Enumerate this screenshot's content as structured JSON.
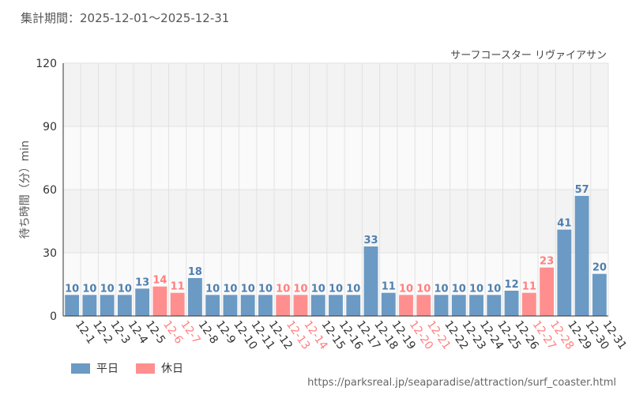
{
  "header": {
    "period_label": "集計期間：2025-12-01～2025-12-31"
  },
  "source_url": "https://parksreal.jp/seaparadise/attraction/surf_coaster.html",
  "legend": {
    "weekday_label": "平日",
    "holiday_label": "休日"
  },
  "colors": {
    "weekday": "#6b9ac4",
    "holiday": "#ff8f8f",
    "band": "#f3f3f3",
    "grid": "#e2e2e2"
  },
  "chart_data": {
    "type": "bar",
    "title": "サーフコースター リヴァイアサン",
    "ylabel": "待ち時間（分）min",
    "xlabel": "",
    "ylim": [
      0,
      120
    ],
    "yticks": [
      0,
      30,
      60,
      90,
      120
    ],
    "categories": [
      "12-1",
      "12-2",
      "12-3",
      "12-4",
      "12-5",
      "12-6",
      "12-7",
      "12-8",
      "12-9",
      "12-10",
      "12-11",
      "12-12",
      "12-13",
      "12-14",
      "12-15",
      "12-16",
      "12-17",
      "12-18",
      "12-19",
      "12-20",
      "12-21",
      "12-22",
      "12-23",
      "12-24",
      "12-25",
      "12-26",
      "12-27",
      "12-28",
      "12-29",
      "12-30",
      "12-31"
    ],
    "values": [
      10,
      10,
      10,
      10,
      13,
      14,
      11,
      18,
      10,
      10,
      10,
      10,
      10,
      10,
      10,
      10,
      10,
      33,
      11,
      10,
      10,
      10,
      10,
      10,
      10,
      12,
      11,
      23,
      41,
      57,
      20
    ],
    "holiday": [
      false,
      false,
      false,
      false,
      false,
      true,
      true,
      false,
      false,
      false,
      false,
      false,
      true,
      true,
      false,
      false,
      false,
      false,
      false,
      true,
      true,
      false,
      false,
      false,
      false,
      false,
      true,
      true,
      false,
      false,
      false
    ]
  }
}
